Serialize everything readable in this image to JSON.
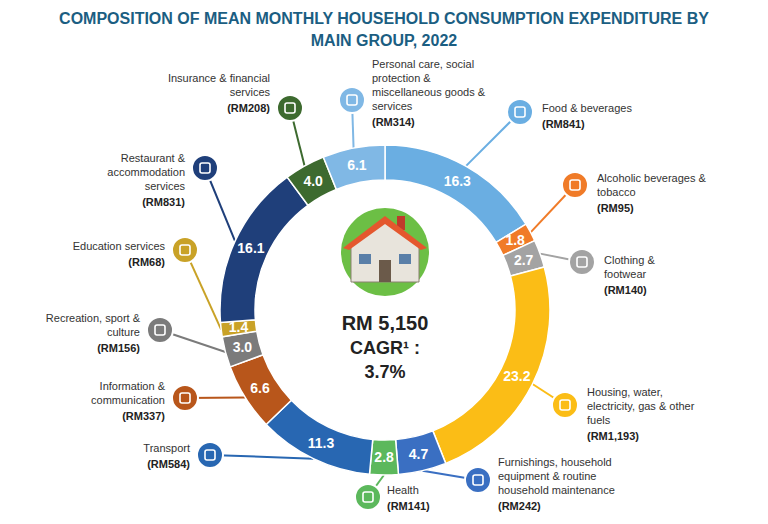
{
  "chart_data": {
    "type": "donut",
    "title": "COMPOSITION OF MEAN MONTHLY HOUSEHOLD CONSUMPTION EXPENDITURE BY MAIN GROUP, 2022",
    "categories": [
      "Food & beverages",
      "Alcoholic beverages & tobacco",
      "Clothing & footwear",
      "Housing, water, electricity, gas & other fuels",
      "Furnishings, household equipment & routine household maintenance",
      "Health",
      "Transport",
      "Information & communication",
      "Recreation, sport & culture",
      "Education services",
      "Restaurant & accommodation services",
      "Insurance & financial services",
      "Personal care, social protection & miscellaneous goods & services"
    ],
    "values": [
      16.3,
      1.8,
      2.7,
      23.2,
      4.7,
      2.8,
      11.3,
      6.6,
      3.0,
      1.4,
      16.1,
      4.0,
      6.1
    ],
    "value_labels": [
      "16.3",
      "1.8",
      "2.7",
      "23.2",
      "4.7",
      "2.8",
      "11.3",
      "6.6",
      "3.0",
      "1.4",
      "16.1",
      "4.0",
      "6.1"
    ],
    "amount_labels": [
      "(RM841)",
      "(RM95)",
      "(RM140)",
      "(RM1,193)",
      "(RM242)",
      "(RM141)",
      "(RM584)",
      "(RM337)",
      "(RM156)",
      "(RM68)",
      "(RM831)",
      "(RM208)",
      "(RM314)"
    ],
    "colors": [
      "#6aaee2",
      "#f07b28",
      "#a3a3a3",
      "#fbbd16",
      "#3a6fc2",
      "#5cb85c",
      "#2867b2",
      "#b8561b",
      "#7b7b7b",
      "#c9a227",
      "#1f3f7a",
      "#3d6a2f",
      "#80b8e5"
    ],
    "data_labels": true,
    "annotations": [
      {
        "text": "RM 5,150"
      },
      {
        "text": "CAGR¹ :"
      },
      {
        "text": "3.7%"
      }
    ]
  }
}
